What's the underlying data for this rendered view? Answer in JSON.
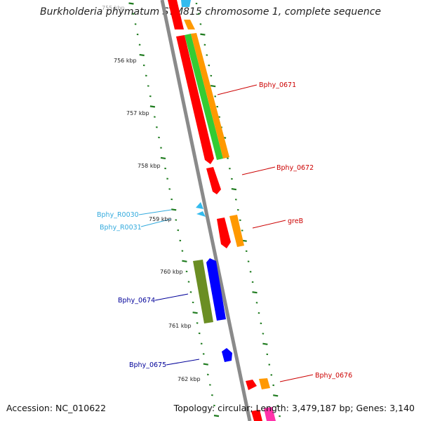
{
  "title": "Burkholderia phymatum STM815 chromosome 1, complete sequence",
  "footer": {
    "accession": "Accession: NC_010622",
    "summary": "Topology: circular; Length: 3,479,187 bp; Genes: 3,140"
  },
  "colors": {
    "backbone": "#8a8a8a",
    "tick": "#1e7b1e",
    "red": "#ff0000",
    "orange": "#ff9900",
    "green": "#33cc33",
    "olive": "#6b8e23",
    "blue": "#0000ff",
    "cyan": "#33bbee",
    "label_red": "#cc0000",
    "label_blue": "#000099",
    "label_cyan": "#33aadd"
  },
  "ticks": [
    "755 kbp",
    "756 kbp",
    "757 kbp",
    "758 kbp",
    "759 kbp",
    "760 kbp",
    "761 kbp",
    "762 kbp"
  ],
  "genes": [
    {
      "label": "Bphy_0671",
      "color": "label_red"
    },
    {
      "label": "Bphy_0672",
      "color": "label_red"
    },
    {
      "label": "greB",
      "color": "label_red"
    },
    {
      "label": "Bphy_R0030",
      "color": "label_cyan"
    },
    {
      "label": "Bphy_R0031",
      "color": "label_cyan"
    },
    {
      "label": "Bphy_0674",
      "color": "label_blue"
    },
    {
      "label": "Bphy_0675",
      "color": "label_blue"
    },
    {
      "label": "Bphy_0676",
      "color": "label_red"
    }
  ]
}
